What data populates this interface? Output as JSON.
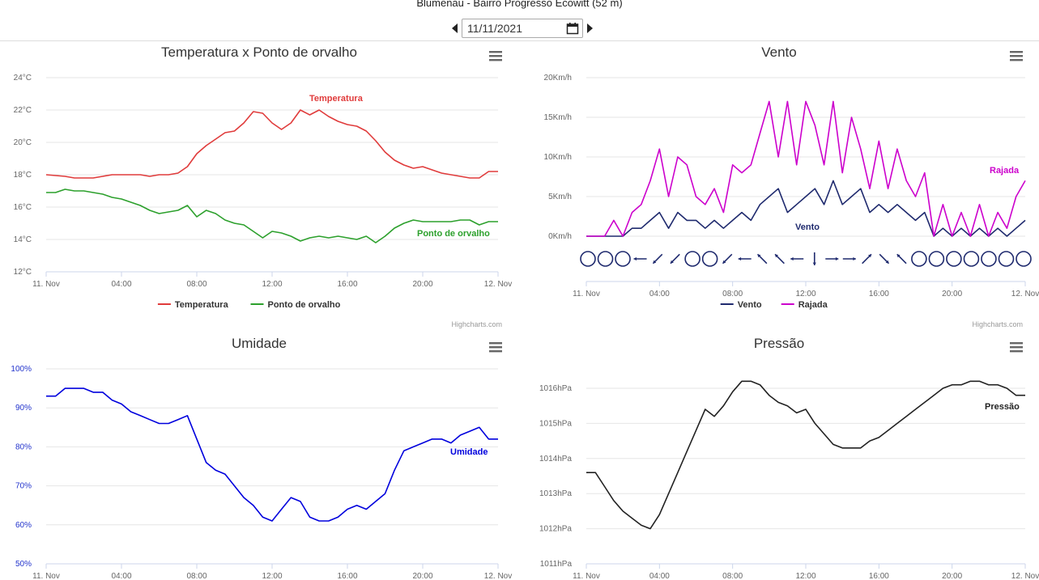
{
  "header": {
    "title": "Blumenau - Bairro Progresso Ecowitt (52 m)",
    "date": "11/11/2021"
  },
  "credit": "Highcharts.com",
  "chart_data": [
    {
      "type": "line",
      "title": "Temperatura x Ponto de orvalho",
      "x_labels": [
        "11. Nov",
        "04:00",
        "08:00",
        "12:00",
        "16:00",
        "20:00",
        "12. Nov"
      ],
      "y_ticks": [
        "12°C",
        "14°C",
        "16°C",
        "18°C",
        "20°C",
        "22°C",
        "24°C"
      ],
      "ylim": [
        12,
        24
      ],
      "x_unit": "hours since 11. Nov 00:00",
      "series": [
        {
          "name": "Temperatura",
          "color": "#e03b3b",
          "x": [
            0,
            1,
            1.5,
            2,
            2.5,
            3,
            3.5,
            4,
            4.5,
            5,
            5.5,
            6,
            6.5,
            7,
            7.5,
            8,
            8.5,
            9,
            9.5,
            10,
            10.5,
            11,
            11.5,
            12,
            12.5,
            13,
            13.5,
            14,
            14.5,
            15,
            15.5,
            16,
            16.5,
            17,
            17.5,
            18,
            18.5,
            19,
            19.5,
            20,
            20.5,
            21,
            21.5,
            22,
            22.5,
            23,
            23.5,
            24
          ],
          "values": [
            18.0,
            17.9,
            17.8,
            17.8,
            17.8,
            17.9,
            18.0,
            18.0,
            18.0,
            18.0,
            17.9,
            18.0,
            18.0,
            18.1,
            18.5,
            19.3,
            19.8,
            20.2,
            20.6,
            20.7,
            21.2,
            21.9,
            21.8,
            21.2,
            20.8,
            21.2,
            22.0,
            21.7,
            22.0,
            21.6,
            21.3,
            21.1,
            21.0,
            20.7,
            20.1,
            19.4,
            18.9,
            18.6,
            18.4,
            18.5,
            18.3,
            18.1,
            18.0,
            17.9,
            17.8,
            17.8,
            18.2,
            18.2
          ]
        },
        {
          "name": "Ponto de orvalho",
          "color": "#2ca02c",
          "x": [
            0,
            0.5,
            1,
            1.5,
            2,
            2.5,
            3,
            3.5,
            4,
            4.5,
            5,
            5.5,
            6,
            6.5,
            7,
            7.5,
            8,
            8.5,
            9,
            9.5,
            10,
            10.5,
            11,
            11.5,
            12,
            12.5,
            13,
            13.5,
            14,
            14.5,
            15,
            15.5,
            16,
            16.5,
            17,
            17.5,
            18,
            18.5,
            19,
            19.5,
            20,
            20.5,
            21,
            21.5,
            22,
            22.5,
            23,
            23.5,
            24
          ],
          "values": [
            16.9,
            16.9,
            17.1,
            17.0,
            17.0,
            16.9,
            16.8,
            16.6,
            16.5,
            16.3,
            16.1,
            15.8,
            15.6,
            15.7,
            15.8,
            16.1,
            15.4,
            15.8,
            15.6,
            15.2,
            15.0,
            14.9,
            14.5,
            14.1,
            14.5,
            14.4,
            14.2,
            13.9,
            14.1,
            14.2,
            14.1,
            14.2,
            14.1,
            14.0,
            14.2,
            13.8,
            14.2,
            14.7,
            15.0,
            15.2,
            15.1,
            15.1,
            15.1,
            15.1,
            15.2,
            15.2,
            14.9,
            15.1,
            15.1
          ]
        }
      ],
      "data_labels": [
        "Temperatura",
        "Ponto de orvalho"
      ],
      "legend": "bottom-center"
    },
    {
      "type": "line",
      "title": "Vento",
      "x_labels": [
        "11. Nov",
        "04:00",
        "08:00",
        "12:00",
        "16:00",
        "20:00",
        "12. Nov"
      ],
      "y_ticks": [
        "0Km/h",
        "5Km/h",
        "10Km/h",
        "15Km/h",
        "20Km/h"
      ],
      "ylim": [
        0,
        20
      ],
      "x_unit": "hours since 11. Nov 00:00",
      "series": [
        {
          "name": "Vento",
          "color": "#1f2a6e",
          "x": [
            0,
            1,
            1.5,
            2,
            2.5,
            3,
            3.5,
            4,
            4.5,
            5,
            5.5,
            6,
            6.5,
            7,
            7.5,
            8,
            8.5,
            9,
            9.5,
            10,
            10.5,
            11,
            11.5,
            12,
            12.5,
            13,
            13.5,
            14,
            14.5,
            15,
            15.5,
            16,
            16.5,
            17,
            17.5,
            18,
            18.5,
            19,
            19.5,
            20,
            20.5,
            21,
            21.5,
            22,
            22.5,
            23,
            23.5,
            24
          ],
          "values": [
            0,
            0,
            0,
            0,
            1,
            1,
            2,
            3,
            1,
            3,
            2,
            2,
            1,
            2,
            1,
            2,
            3,
            2,
            4,
            5,
            6,
            3,
            4,
            5,
            6,
            4,
            7,
            4,
            5,
            6,
            3,
            4,
            3,
            4,
            3,
            2,
            3,
            0,
            1,
            0,
            1,
            0,
            1,
            0,
            1,
            0,
            1,
            2
          ]
        },
        {
          "name": "Rajada",
          "color": "#cc00cc",
          "x": [
            0,
            1,
            1.5,
            2,
            2.5,
            3,
            3.5,
            4,
            4.5,
            5,
            5.5,
            6,
            6.5,
            7,
            7.5,
            8,
            8.5,
            9,
            9.5,
            10,
            10.5,
            11,
            11.5,
            12,
            12.5,
            13,
            13.5,
            14,
            14.5,
            15,
            15.5,
            16,
            16.5,
            17,
            17.5,
            18,
            18.5,
            19,
            19.5,
            20,
            20.5,
            21,
            21.5,
            22,
            22.5,
            23,
            23.5,
            24
          ],
          "values": [
            0,
            0,
            2,
            0,
            3,
            4,
            7,
            11,
            5,
            10,
            9,
            5,
            4,
            6,
            3,
            9,
            8,
            9,
            13,
            17,
            10,
            17,
            9,
            17,
            14,
            9,
            17,
            8,
            15,
            11,
            6,
            12,
            6,
            11,
            7,
            5,
            8,
            0,
            4,
            0,
            3,
            0,
            4,
            0,
            3,
            1,
            5,
            7
          ]
        }
      ],
      "direction_row": [
        "calm",
        "calm",
        "calm",
        "W",
        "SW",
        "SW",
        "calm",
        "calm",
        "SW",
        "W",
        "NW",
        "NW",
        "W",
        "S",
        "E",
        "E",
        "NE",
        "SE",
        "NW",
        "calm",
        "calm",
        "calm",
        "calm",
        "calm",
        "calm",
        "calm"
      ],
      "data_labels": [
        "Vento",
        "Rajada"
      ],
      "legend": "bottom-center"
    },
    {
      "type": "line",
      "title": "Umidade",
      "x_labels": [
        "11. Nov",
        "04:00",
        "08:00",
        "12:00",
        "16:00",
        "20:00",
        "12. Nov"
      ],
      "y_ticks": [
        "50%",
        "60%",
        "70%",
        "80%",
        "90%",
        "100%"
      ],
      "ylim": [
        50,
        100
      ],
      "x_unit": "hours since 11. Nov 00:00",
      "series": [
        {
          "name": "Umidade",
          "color": "#0000dd",
          "x": [
            0,
            0.5,
            1,
            1.5,
            2,
            2.5,
            3,
            3.5,
            4,
            4.5,
            5,
            5.5,
            6,
            6.5,
            7,
            7.5,
            8,
            8.5,
            9,
            9.5,
            10,
            10.5,
            11,
            11.5,
            12,
            12.5,
            13,
            13.5,
            14,
            14.5,
            15,
            15.5,
            16,
            16.5,
            17,
            17.5,
            18,
            18.5,
            19,
            19.5,
            20,
            20.5,
            21,
            21.5,
            22,
            22.5,
            23,
            23.5,
            24
          ],
          "values": [
            93,
            93,
            95,
            95,
            95,
            94,
            94,
            92,
            91,
            89,
            88,
            87,
            86,
            86,
            87,
            88,
            82,
            76,
            74,
            73,
            70,
            67,
            65,
            62,
            61,
            64,
            67,
            66,
            62,
            61,
            61,
            62,
            64,
            65,
            64,
            66,
            68,
            74,
            79,
            80,
            81,
            82,
            82,
            81,
            83,
            84,
            85,
            82,
            82
          ]
        }
      ],
      "data_labels": [
        "Umidade"
      ]
    },
    {
      "type": "line",
      "title": "Pressão",
      "x_labels": [
        "11. Nov",
        "04:00",
        "08:00",
        "12:00",
        "16:00",
        "20:00",
        "12. Nov"
      ],
      "y_ticks": [
        "1011hPa",
        "1012hPa",
        "1013hPa",
        "1014hPa",
        "1015hPa",
        "1016hPa"
      ],
      "ylim": [
        1011,
        1016.5
      ],
      "x_unit": "hours since 11. Nov 00:00",
      "series": [
        {
          "name": "Pressão",
          "color": "#222222",
          "x": [
            0,
            0.5,
            1,
            1.5,
            2,
            2.5,
            3,
            3.5,
            4,
            4.5,
            5,
            5.5,
            6,
            6.5,
            7,
            7.5,
            8,
            8.5,
            9,
            9.5,
            10,
            10.5,
            11,
            11.5,
            12,
            12.5,
            13,
            13.5,
            14,
            14.5,
            15,
            15.5,
            16,
            16.5,
            17,
            17.5,
            18,
            18.5,
            19,
            19.5,
            20,
            20.5,
            21,
            21.5,
            22,
            22.5,
            23,
            23.5,
            24
          ],
          "values": [
            1013.6,
            1013.6,
            1013.2,
            1012.8,
            1012.5,
            1012.3,
            1012.1,
            1012.0,
            1012.4,
            1013.0,
            1013.6,
            1014.2,
            1014.8,
            1015.4,
            1015.2,
            1015.5,
            1015.9,
            1016.2,
            1016.2,
            1016.1,
            1015.8,
            1015.6,
            1015.5,
            1015.3,
            1015.4,
            1015.0,
            1014.7,
            1014.4,
            1014.3,
            1014.3,
            1014.3,
            1014.5,
            1014.6,
            1014.8,
            1015.0,
            1015.2,
            1015.4,
            1015.6,
            1015.8,
            1016.0,
            1016.1,
            1016.1,
            1016.2,
            1016.2,
            1016.1,
            1016.1,
            1016.0,
            1015.8,
            1015.8
          ]
        }
      ],
      "data_labels": [
        "Pressão"
      ]
    }
  ]
}
